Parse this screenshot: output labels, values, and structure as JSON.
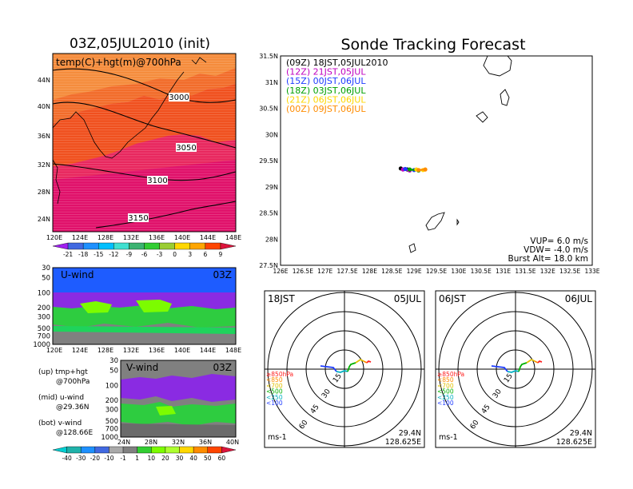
{
  "main_title": "03Z,05JUL2010 (init)",
  "tracking_title": "Sonde Tracking Forecast",
  "top_map": {
    "label": "temp(C)+hgt(m)@700hPa",
    "contours": [
      "3000",
      "3050",
      "3100",
      "3150"
    ],
    "lat_ticks": [
      "44N",
      "40N",
      "36N",
      "32N",
      "28N",
      "24N"
    ],
    "lon_ticks": [
      "120E",
      "124E",
      "128E",
      "132E",
      "136E",
      "140E",
      "144E",
      "148E"
    ],
    "colorbar_labels": [
      "-21",
      "-18",
      "-15",
      "-12",
      "-9",
      "-6",
      "-3",
      "0",
      "3",
      "6",
      "9"
    ],
    "colorbar_colors": [
      "#a020f0",
      "#4169e1",
      "#1e90ff",
      "#00bfff",
      "#40e0d0",
      "#3cb371",
      "#32cd32",
      "#9acd32",
      "#ffd700",
      "#ffa500",
      "#ff4500",
      "#dc143c"
    ]
  },
  "u_panel": {
    "label": "U-wind",
    "time": "03Z",
    "y_ticks": [
      "30",
      "50",
      "100",
      "200",
      "300",
      "500",
      "700",
      "1000"
    ],
    "x_ticks": [
      "120E",
      "124E",
      "128E",
      "132E",
      "136E",
      "140E",
      "144E",
      "148E"
    ]
  },
  "v_panel": {
    "label": "V-wind",
    "time": "03Z",
    "y_ticks": [
      "30",
      "50",
      "100",
      "200",
      "300",
      "500",
      "700",
      "1000"
    ],
    "x_ticks": [
      "24N",
      "28N",
      "32N",
      "36N",
      "40N"
    ]
  },
  "wind_colorbar_labels": [
    "-40",
    "-30",
    "-20",
    "-10",
    "-1",
    "1",
    "10",
    "20",
    "30",
    "40",
    "50",
    "60"
  ],
  "wind_colorbar_colors": [
    "#00ced1",
    "#20b2aa",
    "#1e90ff",
    "#4169e1",
    "#a9a9a9",
    "#808080",
    "#32cd32",
    "#7cfc00",
    "#adff2f",
    "#ffd700",
    "#ff8c00",
    "#ff4500",
    "#dc143c"
  ],
  "legend_notes": [
    {
      "a": "(up) tmp+hgt",
      "b": "@700hPa"
    },
    {
      "a": "(mid) u-wind",
      "b": "@29.36N"
    },
    {
      "a": "(bot) v-wind",
      "b": "@128.66E"
    }
  ],
  "track_legend": [
    {
      "label": "(09Z)  18JST,05JUL2010",
      "color": "#000000"
    },
    {
      "label": "(12Z)  21JST,05JUL",
      "color": "#c000c0"
    },
    {
      "label": "(15Z)  00JST,06JUL",
      "color": "#1e3cff"
    },
    {
      "label": "(18Z)  03JST,06JUL",
      "color": "#00a000"
    },
    {
      "label": "(21Z)  06JST,06JUL",
      "color": "#ffd700"
    },
    {
      "label": "(00Z)  09JST,06JUL",
      "color": "#ff8c00"
    }
  ],
  "track_axes": {
    "lat_ticks": [
      "31.5N",
      "31N",
      "30.5N",
      "30N",
      "29.5N",
      "29N",
      "28.5N",
      "28N",
      "27.5N"
    ],
    "lon_ticks": [
      "126E",
      "126.5E",
      "127E",
      "127.5E",
      "128E",
      "128.5E",
      "129E",
      "129.5E",
      "130E",
      "130.5E",
      "131E",
      "131.5E",
      "132E",
      "132.5E",
      "133E"
    ]
  },
  "sonde_params": {
    "vup": "VUP=  6.0  m/s",
    "vdw": "VDW= -4.0  m/s",
    "burst": "Burst Alt= 18.0  km"
  },
  "hodographs": [
    {
      "time": "18JST",
      "date": "05JUL",
      "lat": "29.4N",
      "lon": "128.625E",
      "unit": "ms-1"
    },
    {
      "time": "06JST",
      "date": "06JUL",
      "lat": "29.4N",
      "lon": "128.625E",
      "unit": "ms-1"
    }
  ],
  "hodo_rings": [
    "15",
    "30",
    "45",
    "60"
  ],
  "hodo_levels": [
    {
      "label": "≥850hPa",
      "color": "#ff2020"
    },
    {
      "label": "<850",
      "color": "#ff8c00"
    },
    {
      "label": "<700",
      "color": "#e0c000"
    },
    {
      "label": "<500",
      "color": "#00b000"
    },
    {
      "label": "<250",
      "color": "#00b0c0"
    },
    {
      "label": "<100",
      "color": "#1e3cff"
    }
  ],
  "chart_data": {
    "type": "scatter",
    "title": "Sonde Tracking Forecast",
    "xlabel": "",
    "ylabel": "",
    "xlim": [
      126,
      133
    ],
    "ylim": [
      27.5,
      31.5
    ],
    "series": [
      {
        "name": "(09Z) 18JST,05JUL2010",
        "x": [
          128.7,
          128.85
        ],
        "y": [
          29.35,
          29.33
        ]
      },
      {
        "name": "(12Z) 21JST,05JUL",
        "x": [
          128.75,
          128.9
        ],
        "y": [
          29.33,
          29.31
        ]
      },
      {
        "name": "(15Z) 00JST,06JUL",
        "x": [
          128.8,
          129.0
        ],
        "y": [
          29.34,
          29.32
        ]
      },
      {
        "name": "(18Z) 03JST,06JUL",
        "x": [
          128.9,
          129.1
        ],
        "y": [
          29.33,
          29.31
        ]
      },
      {
        "name": "(21Z) 06JST,06JUL",
        "x": [
          129.05,
          129.2
        ],
        "y": [
          29.33,
          29.32
        ]
      },
      {
        "name": "(00Z) 09JST,06JUL",
        "x": [
          129.1,
          129.25
        ],
        "y": [
          29.32,
          29.33
        ]
      }
    ]
  }
}
